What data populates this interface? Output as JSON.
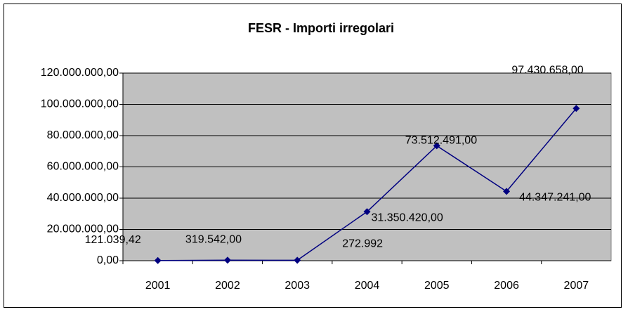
{
  "chart_data": {
    "type": "line",
    "title": "FESR - Importi irregolari",
    "categories": [
      "2001",
      "2002",
      "2003",
      "2004",
      "2005",
      "2006",
      "2007"
    ],
    "series": [
      {
        "color": "#000080",
        "values": [
          121039.42,
          319542,
          272992,
          31350420,
          73512491,
          44347241,
          97430658
        ],
        "value_labels": [
          "121.039,42",
          "319.542,00",
          "272.992",
          "31.350.420,00",
          "73.512.491,00",
          "44.347.241,00",
          "97.430.658,00"
        ]
      }
    ],
    "ylim": [
      0,
      120000000
    ],
    "yticks": [
      {
        "value": 0,
        "label": "0,00"
      },
      {
        "value": 20000000,
        "label": "20.000.000,00"
      },
      {
        "value": 40000000,
        "label": "40.000.000,00"
      },
      {
        "value": 60000000,
        "label": "60.000.000,00"
      },
      {
        "value": 80000000,
        "label": "80.000.000,00"
      },
      {
        "value": 100000000,
        "label": "100.000.000,00"
      },
      {
        "value": 120000000,
        "label": "120.000.000,00"
      }
    ],
    "grid": true,
    "plot_background": "#c0c0c0"
  }
}
